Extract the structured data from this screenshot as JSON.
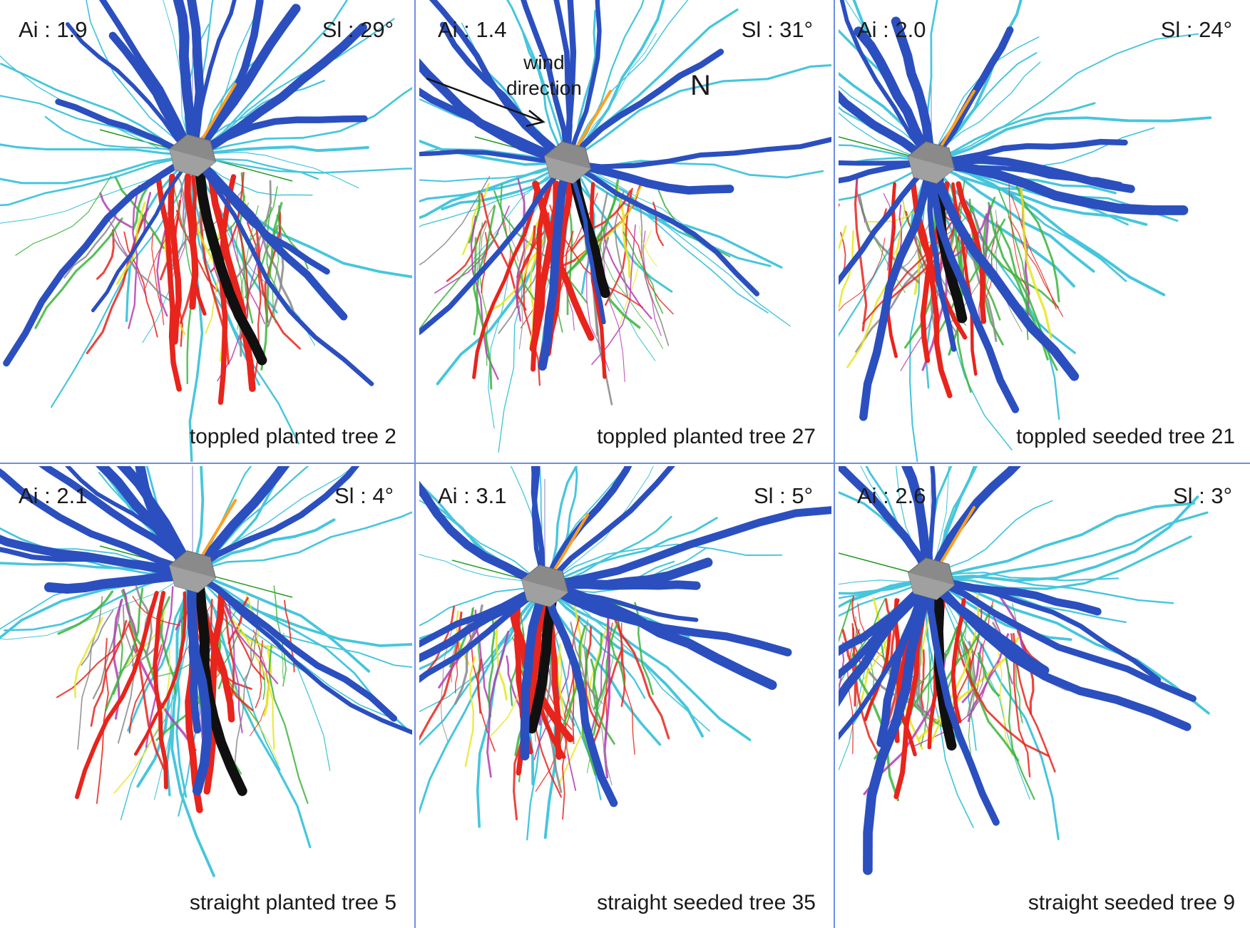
{
  "panels": [
    {
      "ai": "Ai : 1.9",
      "sl": "Sl : 29°",
      "caption": "toppled planted tree 2"
    },
    {
      "ai": "Ai : 1.4",
      "sl": "Sl : 31°",
      "caption": "toppled planted tree 27",
      "wind_label_1": "wind",
      "wind_label_2": "direction",
      "north_label": "N"
    },
    {
      "ai": "Ai : 2.0",
      "sl": "Sl : 24°",
      "caption": "toppled seeded tree 21"
    },
    {
      "ai": "Ai : 2.1",
      "sl": "Sl : 4°",
      "caption": "straight planted tree 5"
    },
    {
      "ai": "Ai : 3.1",
      "sl": "Sl : 5°",
      "caption": "straight seeded tree 35"
    },
    {
      "ai": "Ai : 2.6",
      "sl": "Sl : 3°",
      "caption": "straight seeded tree 9"
    }
  ],
  "colors": {
    "dark_blue": "#2b4fbf",
    "cyan": "#46c6dc",
    "red": "#e8241c",
    "magenta": "#b43cb4",
    "green": "#3cb43c",
    "yellow": "#e6e61e",
    "black": "#101010",
    "gray": "#888888",
    "orange": "#ffa01e",
    "stump": "#8a8a8a",
    "divider": "#6f8fe0"
  }
}
